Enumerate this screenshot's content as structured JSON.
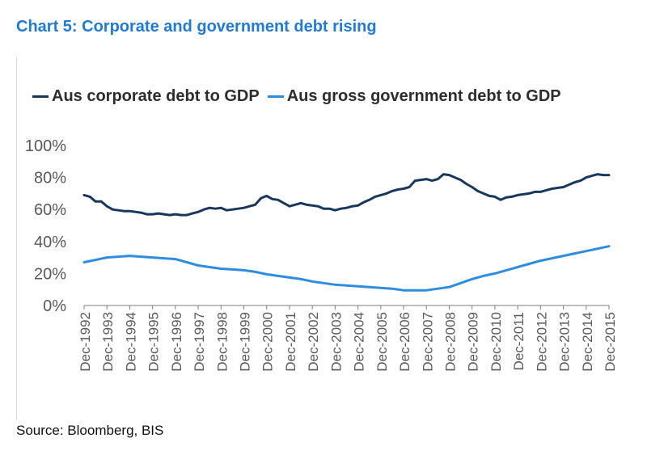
{
  "header": {
    "title": "Chart 5: Corporate and government debt rising"
  },
  "footer": {
    "source": "Source: Bloomberg, BIS"
  },
  "colors": {
    "corporate": "#17375e",
    "government": "#2e8de0",
    "axis": "#595959",
    "title": "#1f7bd6"
  },
  "chart_data": {
    "type": "line",
    "x_ticks": [
      "Dec-1992",
      "Dec-1993",
      "Dec-1994",
      "Dec-1995",
      "Dec-1996",
      "Dec-1997",
      "Dec-1998",
      "Dec-1999",
      "Dec-2000",
      "Dec-2001",
      "Dec-2002",
      "Dec-2003",
      "Dec-2004",
      "Dec-2005",
      "Dec-2006",
      "Dec-2007",
      "Dec-2008",
      "Dec-2009",
      "Dec-2010",
      "Dec-2011",
      "Dec-2012",
      "Dec-2013",
      "Dec-2014",
      "Dec-2015"
    ],
    "y_ticks": [
      "0%",
      "20%",
      "40%",
      "60%",
      "80%",
      "100%"
    ],
    "ylim": [
      0,
      100
    ],
    "legend_position": "top",
    "series": [
      {
        "name": "Aus corporate debt to GDP",
        "color": "#17375e",
        "points": [
          [
            1992.0,
            69
          ],
          [
            1992.25,
            68
          ],
          [
            1992.5,
            65
          ],
          [
            1992.75,
            65
          ],
          [
            1993.0,
            62
          ],
          [
            1993.25,
            60
          ],
          [
            1993.5,
            59.5
          ],
          [
            1993.75,
            59
          ],
          [
            1994.0,
            59
          ],
          [
            1994.25,
            58.5
          ],
          [
            1994.5,
            58
          ],
          [
            1994.75,
            57
          ],
          [
            1995.0,
            57
          ],
          [
            1995.25,
            57.5
          ],
          [
            1995.5,
            57
          ],
          [
            1995.75,
            56.5
          ],
          [
            1996.0,
            57
          ],
          [
            1996.25,
            56.5
          ],
          [
            1996.5,
            56.5
          ],
          [
            1996.75,
            57.5
          ],
          [
            1997.0,
            58.5
          ],
          [
            1997.25,
            60
          ],
          [
            1997.5,
            61
          ],
          [
            1997.75,
            60.5
          ],
          [
            1998.0,
            61
          ],
          [
            1998.25,
            59.5
          ],
          [
            1998.5,
            60
          ],
          [
            1998.75,
            60.5
          ],
          [
            1999.0,
            61
          ],
          [
            1999.25,
            62
          ],
          [
            1999.5,
            63
          ],
          [
            1999.75,
            67
          ],
          [
            2000.0,
            68.5
          ],
          [
            2000.25,
            66.5
          ],
          [
            2000.5,
            66
          ],
          [
            2000.75,
            64
          ],
          [
            2001.0,
            62
          ],
          [
            2001.25,
            63
          ],
          [
            2001.5,
            64
          ],
          [
            2001.75,
            63
          ],
          [
            2002.0,
            62.5
          ],
          [
            2002.25,
            62
          ],
          [
            2002.5,
            60.5
          ],
          [
            2002.75,
            60.5
          ],
          [
            2003.0,
            59.5
          ],
          [
            2003.25,
            60.5
          ],
          [
            2003.5,
            61
          ],
          [
            2003.75,
            62
          ],
          [
            2004.0,
            62.5
          ],
          [
            2004.25,
            64.5
          ],
          [
            2004.5,
            66
          ],
          [
            2004.75,
            68
          ],
          [
            2005.0,
            69
          ],
          [
            2005.25,
            70
          ],
          [
            2005.5,
            71.5
          ],
          [
            2005.75,
            72.5
          ],
          [
            2006.0,
            73
          ],
          [
            2006.25,
            74
          ],
          [
            2006.5,
            78
          ],
          [
            2006.75,
            78.5
          ],
          [
            2007.0,
            79
          ],
          [
            2007.25,
            78
          ],
          [
            2007.5,
            79
          ],
          [
            2007.75,
            82
          ],
          [
            2008.0,
            81.5
          ],
          [
            2008.25,
            80
          ],
          [
            2008.5,
            78.5
          ],
          [
            2008.75,
            76
          ],
          [
            2009.0,
            74
          ],
          [
            2009.25,
            71.5
          ],
          [
            2009.5,
            70
          ],
          [
            2009.75,
            68.5
          ],
          [
            2010.0,
            68
          ],
          [
            2010.25,
            66
          ],
          [
            2010.5,
            67.5
          ],
          [
            2010.75,
            68
          ],
          [
            2011.0,
            69
          ],
          [
            2011.25,
            69.5
          ],
          [
            2011.5,
            70
          ],
          [
            2011.75,
            71
          ],
          [
            2012.0,
            71
          ],
          [
            2012.25,
            72
          ],
          [
            2012.5,
            73
          ],
          [
            2012.75,
            73.5
          ],
          [
            2013.0,
            74
          ],
          [
            2013.25,
            75.5
          ],
          [
            2013.5,
            77
          ],
          [
            2013.75,
            78
          ],
          [
            2014.0,
            80
          ],
          [
            2014.25,
            81
          ],
          [
            2014.5,
            82
          ],
          [
            2014.75,
            81.5
          ],
          [
            2015.0,
            81.5
          ]
        ]
      },
      {
        "name": "Aus gross government debt to GDP",
        "color": "#2e8de0",
        "points": [
          [
            1992.0,
            27
          ],
          [
            1992.5,
            28.5
          ],
          [
            1993.0,
            30
          ],
          [
            1993.5,
            30.5
          ],
          [
            1994.0,
            31
          ],
          [
            1994.5,
            30.5
          ],
          [
            1995.0,
            30
          ],
          [
            1995.5,
            29.5
          ],
          [
            1996.0,
            29
          ],
          [
            1996.5,
            27
          ],
          [
            1997.0,
            25
          ],
          [
            1997.5,
            24
          ],
          [
            1998.0,
            23
          ],
          [
            1998.5,
            22.5
          ],
          [
            1999.0,
            22
          ],
          [
            1999.5,
            21
          ],
          [
            2000.0,
            19.5
          ],
          [
            2000.5,
            18.5
          ],
          [
            2001.0,
            17.5
          ],
          [
            2001.5,
            16.5
          ],
          [
            2002.0,
            15
          ],
          [
            2002.5,
            14
          ],
          [
            2003.0,
            13
          ],
          [
            2003.5,
            12.5
          ],
          [
            2004.0,
            12
          ],
          [
            2004.5,
            11.5
          ],
          [
            2005.0,
            11
          ],
          [
            2005.5,
            10.5
          ],
          [
            2006.0,
            9.5
          ],
          [
            2006.5,
            9.5
          ],
          [
            2007.0,
            9.5
          ],
          [
            2007.5,
            10.5
          ],
          [
            2008.0,
            11.5
          ],
          [
            2008.5,
            14
          ],
          [
            2009.0,
            16.5
          ],
          [
            2009.5,
            18.5
          ],
          [
            2010.0,
            20
          ],
          [
            2010.5,
            22
          ],
          [
            2011.0,
            24
          ],
          [
            2011.5,
            26
          ],
          [
            2012.0,
            28
          ],
          [
            2012.5,
            29.5
          ],
          [
            2013.0,
            31
          ],
          [
            2013.5,
            32.5
          ],
          [
            2014.0,
            34
          ],
          [
            2014.5,
            35.5
          ],
          [
            2015.0,
            37
          ]
        ]
      }
    ]
  }
}
